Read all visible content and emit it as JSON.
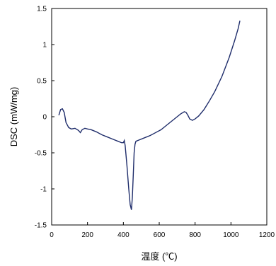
{
  "chart_data": {
    "type": "line",
    "xlabel": "温度 (℃)",
    "ylabel": "DSC (mW/mg)",
    "xlim": [
      0,
      1200
    ],
    "ylim": [
      -1.5,
      1.5
    ],
    "xticks": [
      "0",
      "200",
      "400",
      "600",
      "800",
      "1000",
      "1200"
    ],
    "yticks": [
      "-1.5",
      "-1",
      "-0.5",
      "0",
      "0.5",
      "1",
      "1.5"
    ],
    "grid": false,
    "line_color": "#1f2d6b",
    "series": [
      {
        "x": [
          40,
          50,
          60,
          70,
          80,
          95,
          110,
          130,
          150,
          160,
          170,
          185,
          200,
          220,
          250,
          280,
          310,
          340,
          370,
          390,
          400,
          405,
          410,
          420,
          430,
          438,
          445,
          450,
          455,
          460,
          465,
          470,
          490,
          520,
          550,
          580,
          610,
          640,
          670,
          700,
          720,
          740,
          750,
          760,
          770,
          785,
          800,
          820,
          850,
          880,
          910,
          950,
          990,
          1020,
          1040,
          1050
        ],
        "y": [
          0.02,
          0.1,
          0.11,
          0.06,
          -0.08,
          -0.15,
          -0.17,
          -0.16,
          -0.19,
          -0.22,
          -0.18,
          -0.16,
          -0.17,
          -0.18,
          -0.21,
          -0.25,
          -0.28,
          -0.31,
          -0.34,
          -0.36,
          -0.36,
          -0.33,
          -0.4,
          -0.68,
          -1.0,
          -1.22,
          -1.29,
          -1.12,
          -0.82,
          -0.5,
          -0.38,
          -0.34,
          -0.32,
          -0.29,
          -0.26,
          -0.22,
          -0.18,
          -0.12,
          -0.06,
          0.0,
          0.04,
          0.07,
          0.06,
          0.02,
          -0.03,
          -0.05,
          -0.03,
          0.01,
          0.1,
          0.22,
          0.35,
          0.56,
          0.82,
          1.05,
          1.22,
          1.33
        ]
      }
    ]
  }
}
